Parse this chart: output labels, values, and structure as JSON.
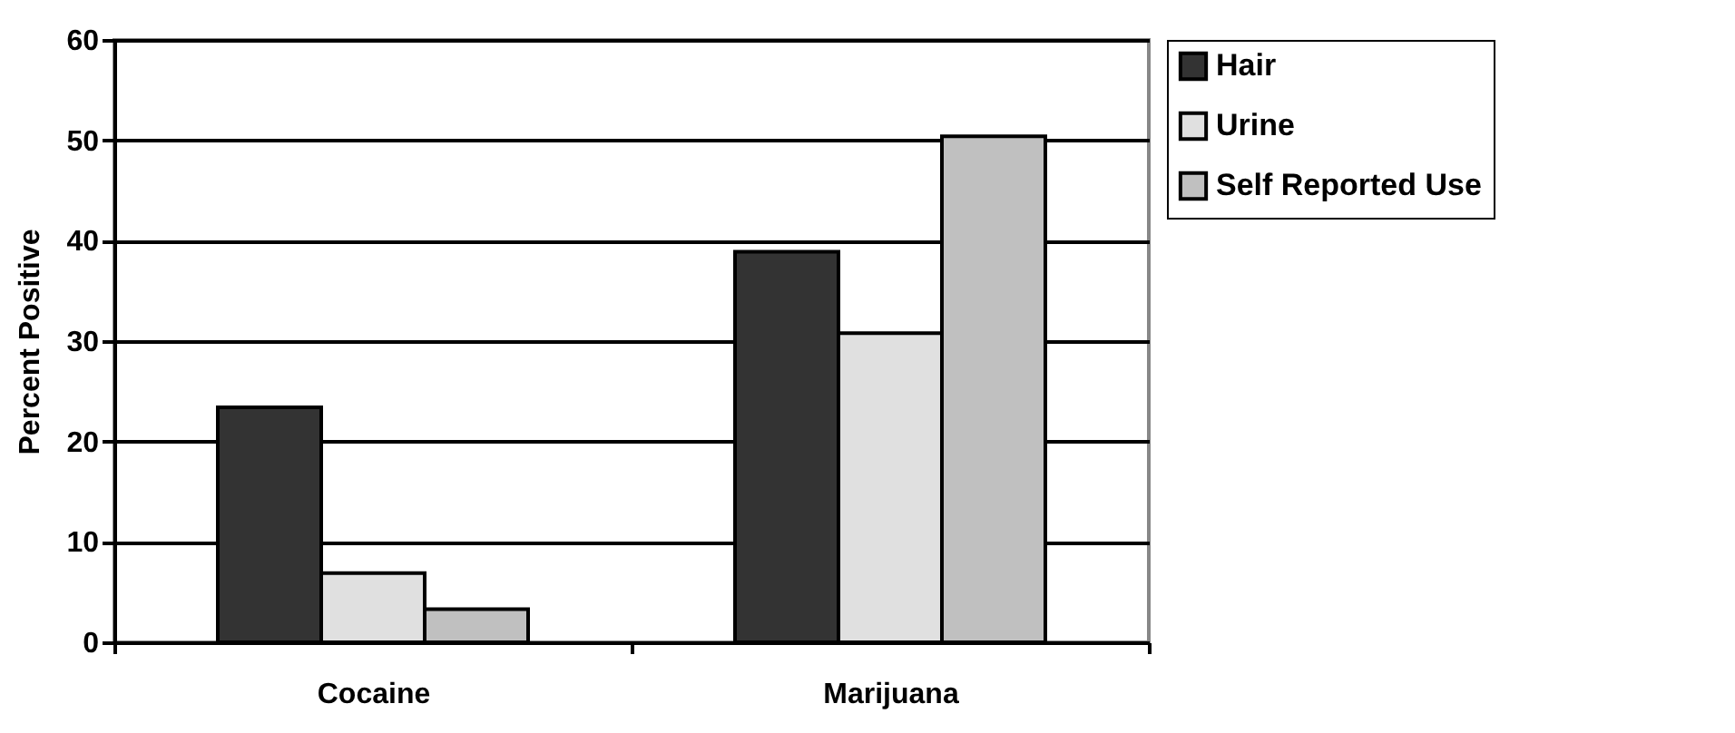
{
  "chart_data": {
    "type": "bar",
    "ylabel": "Percent Positive",
    "categories": [
      "Cocaine",
      "Marijuana"
    ],
    "series": [
      {
        "name": "Hair",
        "color": "#333333",
        "values": [
          23.4,
          38.9
        ]
      },
      {
        "name": "Urine",
        "color": "#e0e0e0",
        "values": [
          6.9,
          30.8
        ]
      },
      {
        "name": "Self Reported Use",
        "color": "#c0c0c0",
        "values": [
          3.3,
          50.4
        ]
      }
    ],
    "ylim": [
      0,
      60
    ],
    "yticks": [
      0,
      10,
      20,
      30,
      40,
      50,
      60
    ],
    "grid": "y",
    "legend": "right"
  }
}
